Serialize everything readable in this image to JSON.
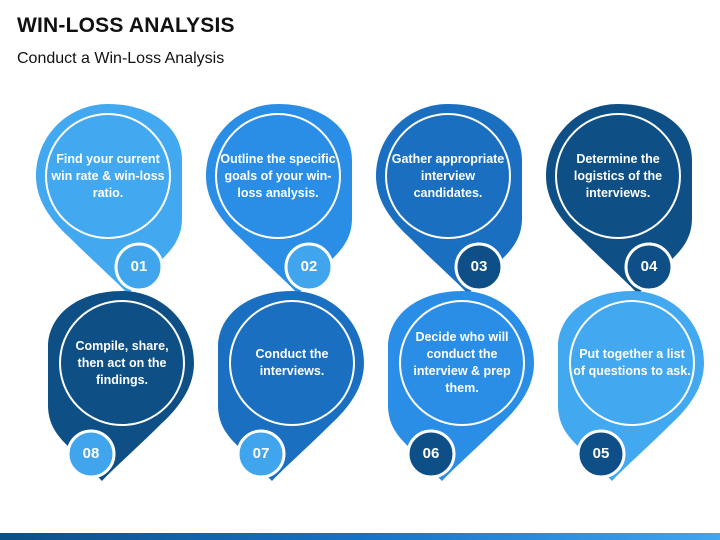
{
  "title": "WIN-LOSS ANALYSIS",
  "subtitle": "Conduct a Win-Loss Analysis",
  "colors": {
    "step1": "#42a8f0",
    "step2": "#2b8ee6",
    "step3": "#1a6fc0",
    "step4": "#0e4f86",
    "badge_light": "#41a5ee",
    "badge_dark": "#0d4f86"
  },
  "steps": [
    {
      "number": "01",
      "text": "Find your current win rate & win-loss ratio.",
      "color": "#42a8f0"
    },
    {
      "number": "02",
      "text": "Outline the specific goals of your win-loss analysis.",
      "color": "#2b8ee6"
    },
    {
      "number": "03",
      "text": "Gather appropriate interview candidates.",
      "color": "#1a6fc0"
    },
    {
      "number": "04",
      "text": "Determine the logistics of the interviews.",
      "color": "#0e4f86"
    },
    {
      "number": "05",
      "text": "Put together a list of questions to ask.",
      "color": "#42a8f0"
    },
    {
      "number": "06",
      "text": "Decide who will conduct the interview & prep them.",
      "color": "#2b8ee6"
    },
    {
      "number": "07",
      "text": "Conduct the interviews.",
      "color": "#1a6fc0"
    },
    {
      "number": "08",
      "text": "Compile, share, then act on the findings.",
      "color": "#0e4f86"
    }
  ]
}
